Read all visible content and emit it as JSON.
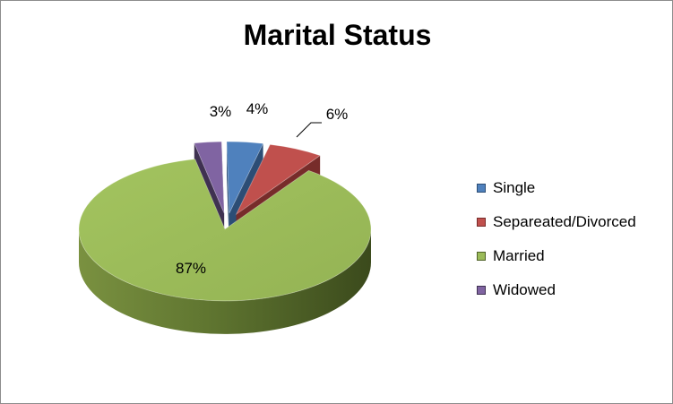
{
  "chart_data": {
    "type": "pie",
    "title": "Marital Status",
    "categories": [
      "Single",
      "Separeated/Divorced",
      "Married",
      "Widowed"
    ],
    "values": [
      4,
      6,
      87,
      3
    ],
    "labels": [
      "4%",
      "6%",
      "87%",
      "3%"
    ],
    "colors": [
      "#4f81bd",
      "#c0504d",
      "#9bbb59",
      "#8064a2"
    ],
    "side_colors": [
      "#2c4d75",
      "#772c2a",
      "#4f6228",
      "#3f3151"
    ],
    "legend": "right",
    "style": "3d-exploded"
  }
}
